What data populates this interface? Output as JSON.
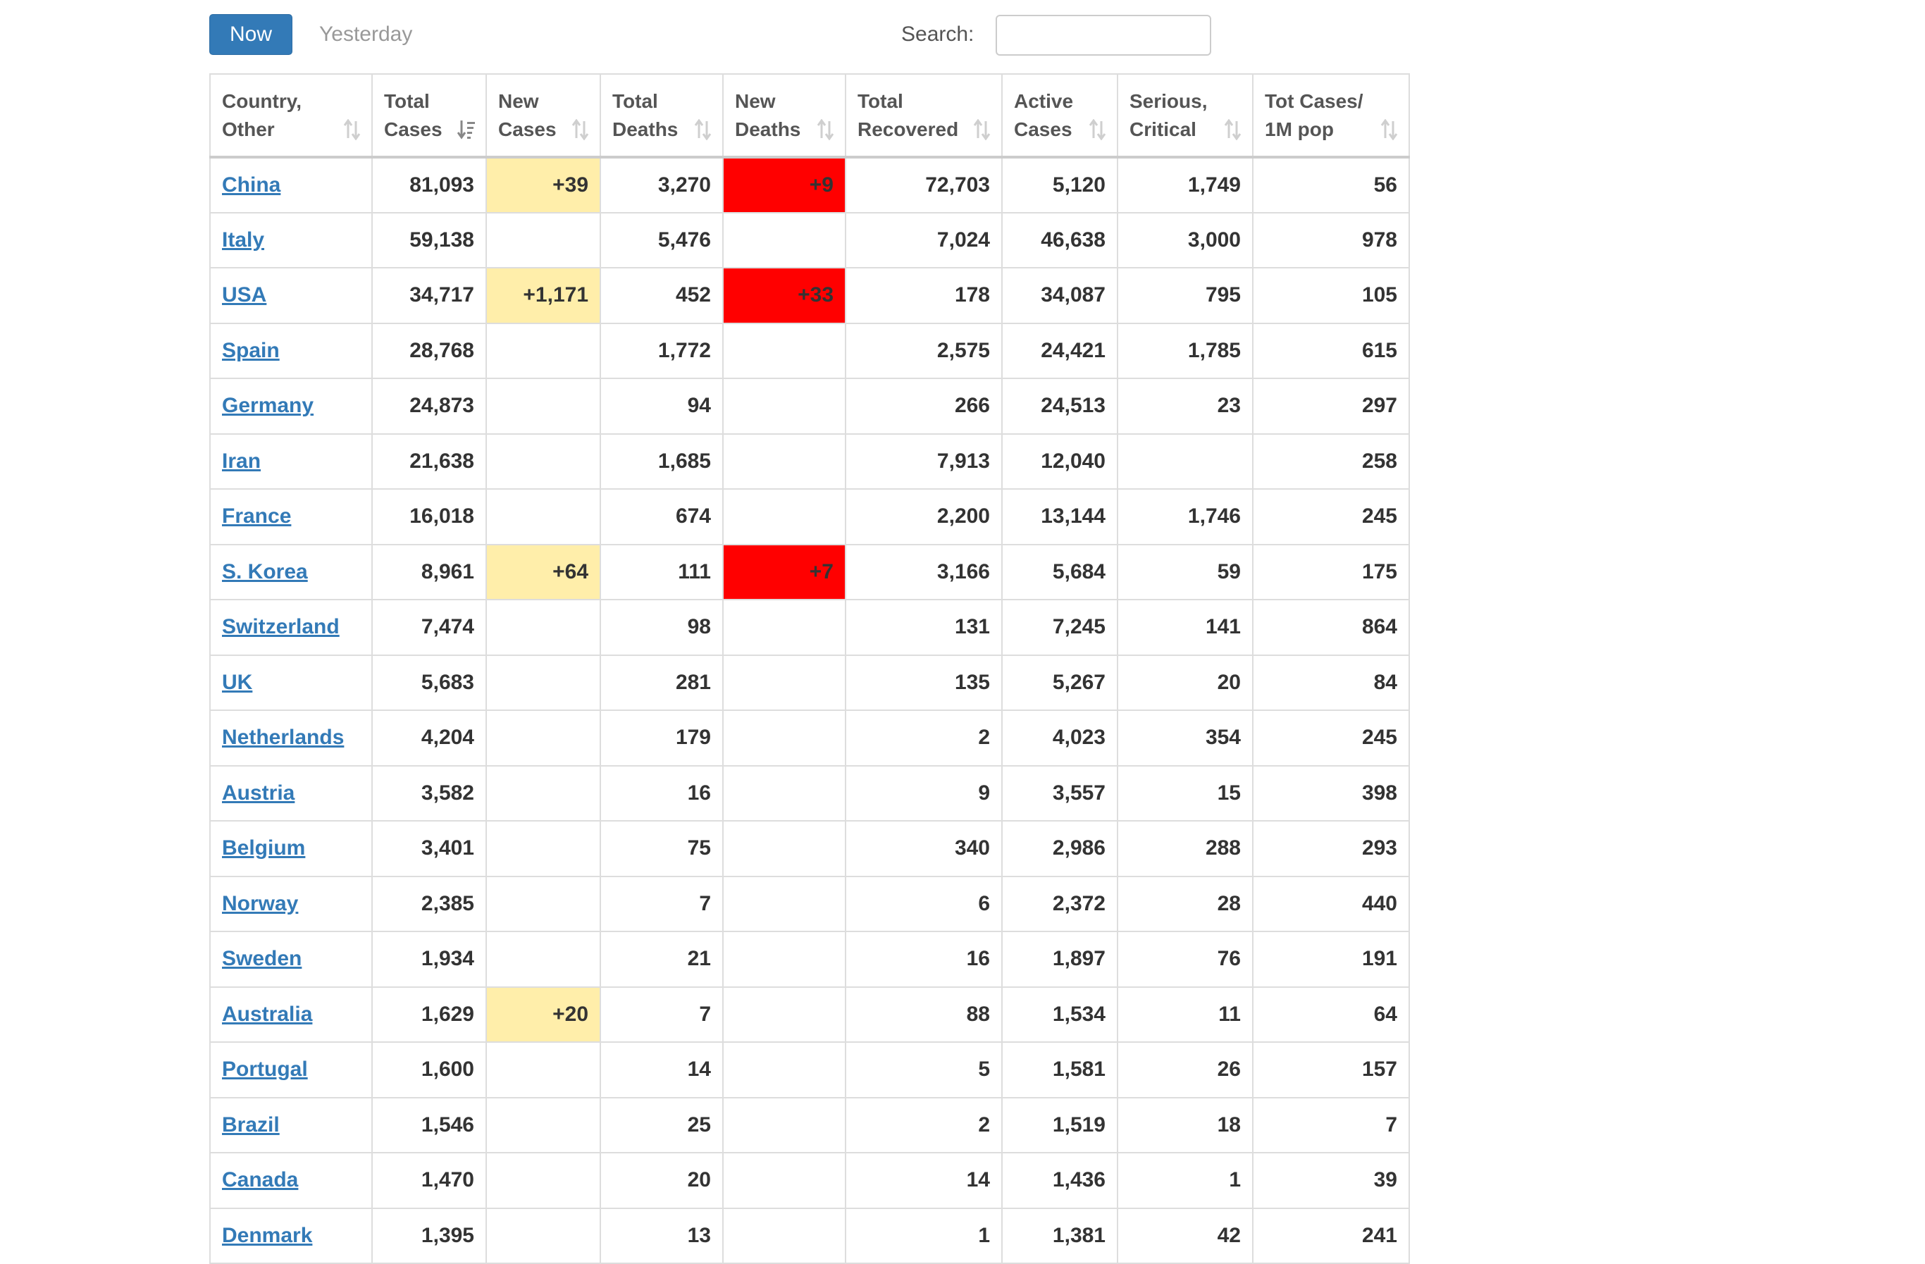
{
  "toolbar": {
    "now_label": "Now",
    "yesterday_label": "Yesterday",
    "search_label": "Search:",
    "search_value": ""
  },
  "colors": {
    "accent": "#337ab7",
    "new_cases_highlight": "#ffeeaa",
    "new_deaths_highlight": "#ff0000"
  },
  "table": {
    "columns": [
      {
        "label": "Country,\nOther",
        "sort_icon": "sort-icon"
      },
      {
        "label": "Total\nCases",
        "sort_icon": "sort-desc-icon"
      },
      {
        "label": "New\nCases",
        "sort_icon": "sort-icon"
      },
      {
        "label": "Total\nDeaths",
        "sort_icon": "sort-icon"
      },
      {
        "label": "New\nDeaths",
        "sort_icon": "sort-icon"
      },
      {
        "label": "Total\nRecovered",
        "sort_icon": "sort-icon"
      },
      {
        "label": "Active\nCases",
        "sort_icon": "sort-icon"
      },
      {
        "label": "Serious,\nCritical",
        "sort_icon": "sort-icon"
      },
      {
        "label": "Tot Cases/\n1M pop",
        "sort_icon": "sort-icon"
      }
    ],
    "rows": [
      {
        "country": "China",
        "total_cases": "81,093",
        "new_cases": "+39",
        "total_deaths": "3,270",
        "new_deaths": "+9",
        "total_recovered": "72,703",
        "active_cases": "5,120",
        "serious_critical": "1,749",
        "per_million": "56"
      },
      {
        "country": "Italy",
        "total_cases": "59,138",
        "new_cases": "",
        "total_deaths": "5,476",
        "new_deaths": "",
        "total_recovered": "7,024",
        "active_cases": "46,638",
        "serious_critical": "3,000",
        "per_million": "978"
      },
      {
        "country": "USA",
        "total_cases": "34,717",
        "new_cases": "+1,171",
        "total_deaths": "452",
        "new_deaths": "+33",
        "total_recovered": "178",
        "active_cases": "34,087",
        "serious_critical": "795",
        "per_million": "105"
      },
      {
        "country": "Spain",
        "total_cases": "28,768",
        "new_cases": "",
        "total_deaths": "1,772",
        "new_deaths": "",
        "total_recovered": "2,575",
        "active_cases": "24,421",
        "serious_critical": "1,785",
        "per_million": "615"
      },
      {
        "country": "Germany",
        "total_cases": "24,873",
        "new_cases": "",
        "total_deaths": "94",
        "new_deaths": "",
        "total_recovered": "266",
        "active_cases": "24,513",
        "serious_critical": "23",
        "per_million": "297"
      },
      {
        "country": "Iran",
        "total_cases": "21,638",
        "new_cases": "",
        "total_deaths": "1,685",
        "new_deaths": "",
        "total_recovered": "7,913",
        "active_cases": "12,040",
        "serious_critical": "",
        "per_million": "258"
      },
      {
        "country": "France",
        "total_cases": "16,018",
        "new_cases": "",
        "total_deaths": "674",
        "new_deaths": "",
        "total_recovered": "2,200",
        "active_cases": "13,144",
        "serious_critical": "1,746",
        "per_million": "245"
      },
      {
        "country": "S. Korea",
        "total_cases": "8,961",
        "new_cases": "+64",
        "total_deaths": "111",
        "new_deaths": "+7",
        "total_recovered": "3,166",
        "active_cases": "5,684",
        "serious_critical": "59",
        "per_million": "175"
      },
      {
        "country": "Switzerland",
        "total_cases": "7,474",
        "new_cases": "",
        "total_deaths": "98",
        "new_deaths": "",
        "total_recovered": "131",
        "active_cases": "7,245",
        "serious_critical": "141",
        "per_million": "864"
      },
      {
        "country": "UK",
        "total_cases": "5,683",
        "new_cases": "",
        "total_deaths": "281",
        "new_deaths": "",
        "total_recovered": "135",
        "active_cases": "5,267",
        "serious_critical": "20",
        "per_million": "84"
      },
      {
        "country": "Netherlands",
        "total_cases": "4,204",
        "new_cases": "",
        "total_deaths": "179",
        "new_deaths": "",
        "total_recovered": "2",
        "active_cases": "4,023",
        "serious_critical": "354",
        "per_million": "245"
      },
      {
        "country": "Austria",
        "total_cases": "3,582",
        "new_cases": "",
        "total_deaths": "16",
        "new_deaths": "",
        "total_recovered": "9",
        "active_cases": "3,557",
        "serious_critical": "15",
        "per_million": "398"
      },
      {
        "country": "Belgium",
        "total_cases": "3,401",
        "new_cases": "",
        "total_deaths": "75",
        "new_deaths": "",
        "total_recovered": "340",
        "active_cases": "2,986",
        "serious_critical": "288",
        "per_million": "293"
      },
      {
        "country": "Norway",
        "total_cases": "2,385",
        "new_cases": "",
        "total_deaths": "7",
        "new_deaths": "",
        "total_recovered": "6",
        "active_cases": "2,372",
        "serious_critical": "28",
        "per_million": "440"
      },
      {
        "country": "Sweden",
        "total_cases": "1,934",
        "new_cases": "",
        "total_deaths": "21",
        "new_deaths": "",
        "total_recovered": "16",
        "active_cases": "1,897",
        "serious_critical": "76",
        "per_million": "191"
      },
      {
        "country": "Australia",
        "total_cases": "1,629",
        "new_cases": "+20",
        "total_deaths": "7",
        "new_deaths": "",
        "total_recovered": "88",
        "active_cases": "1,534",
        "serious_critical": "11",
        "per_million": "64"
      },
      {
        "country": "Portugal",
        "total_cases": "1,600",
        "new_cases": "",
        "total_deaths": "14",
        "new_deaths": "",
        "total_recovered": "5",
        "active_cases": "1,581",
        "serious_critical": "26",
        "per_million": "157"
      },
      {
        "country": "Brazil",
        "total_cases": "1,546",
        "new_cases": "",
        "total_deaths": "25",
        "new_deaths": "",
        "total_recovered": "2",
        "active_cases": "1,519",
        "serious_critical": "18",
        "per_million": "7"
      },
      {
        "country": "Canada",
        "total_cases": "1,470",
        "new_cases": "",
        "total_deaths": "20",
        "new_deaths": "",
        "total_recovered": "14",
        "active_cases": "1,436",
        "serious_critical": "1",
        "per_million": "39"
      },
      {
        "country": "Denmark",
        "total_cases": "1,395",
        "new_cases": "",
        "total_deaths": "13",
        "new_deaths": "",
        "total_recovered": "1",
        "active_cases": "1,381",
        "serious_critical": "42",
        "per_million": "241"
      }
    ]
  }
}
